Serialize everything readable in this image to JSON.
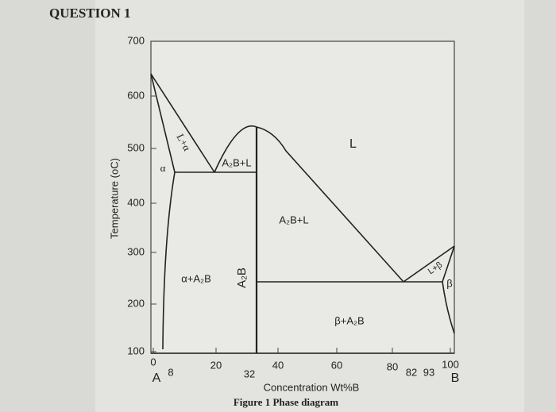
{
  "header": {
    "title": "QUESTION 1"
  },
  "diagram": {
    "y_axis_label": "Temperature (oC)",
    "y_ticks": [
      "700",
      "600",
      "500",
      "400",
      "300",
      "200",
      "100"
    ],
    "x_ticks": [
      "0",
      "20",
      "40",
      "60",
      "80",
      "100"
    ],
    "x_marks": [
      "8",
      "32",
      "82",
      "93"
    ],
    "x_ends": [
      "A",
      "B"
    ],
    "x_axis_label": "Concentration Wt%B",
    "regions": [
      "L",
      "L+α",
      "A₂B+L",
      "α",
      "A₂B+L",
      "α+A₂B",
      "A₂B",
      "β+A₂B",
      "L+β",
      "β"
    ],
    "caption": "Figure 1 Phase diagram"
  }
}
